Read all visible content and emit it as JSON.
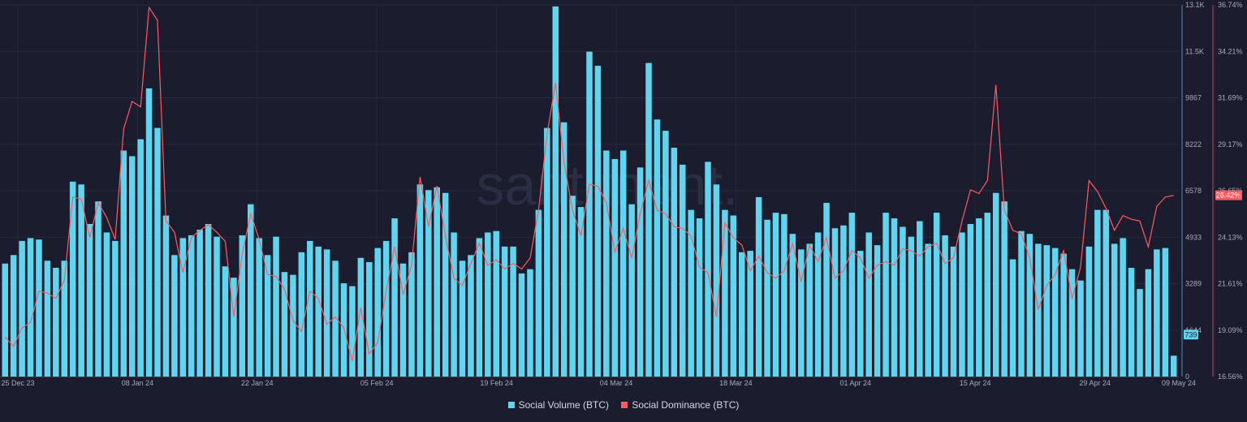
{
  "chart_data": {
    "type": "bar+line",
    "watermark": "santiment.",
    "x_tick_labels": [
      "25 Dec 23",
      "08 Jan 24",
      "22 Jan 24",
      "05 Feb 24",
      "19 Feb 24",
      "04 Mar 24",
      "18 Mar 24",
      "01 Apr 24",
      "15 Apr 24",
      "29 Apr 24",
      "09 May 24"
    ],
    "left_axis": {
      "ticks": [
        "13.1K",
        "11.5K",
        "9867",
        "8222",
        "6578",
        "4933",
        "3289",
        "1644",
        "0"
      ],
      "ylim": [
        0,
        13156
      ],
      "latest_label": "739"
    },
    "right_axis": {
      "ticks": [
        "36.74%",
        "34.21%",
        "31.69%",
        "29.17%",
        "26.65%",
        "24.13%",
        "21.61%",
        "19.09%",
        "16.56%"
      ],
      "ylim": [
        16.56,
        36.74
      ],
      "latest_label": "26.42%"
    },
    "series": [
      {
        "name": "Social Volume (BTC)",
        "kind": "bar",
        "color": "#5fd5ef",
        "values": [
          4000,
          4300,
          4800,
          4900,
          4850,
          4100,
          3850,
          4100,
          6900,
          6800,
          5400,
          6200,
          5100,
          4800,
          8000,
          7800,
          8400,
          10200,
          8800,
          5700,
          4300,
          4900,
          5000,
          5200,
          5400,
          4950,
          3900,
          3500,
          5000,
          6100,
          4900,
          4300,
          4950,
          3700,
          3600,
          4400,
          4800,
          4600,
          4500,
          4100,
          3300,
          3200,
          4200,
          4050,
          4550,
          4800,
          5600,
          4000,
          4400,
          6800,
          6600,
          6700,
          6500,
          5100,
          4100,
          4300,
          4900,
          5100,
          5150,
          4600,
          4600,
          3650,
          3800,
          5900,
          8800,
          13100,
          9000,
          6400,
          6000,
          11500,
          11000,
          8000,
          7700,
          8000,
          6100,
          7400,
          11100,
          9100,
          8700,
          8100,
          7500,
          5900,
          5600,
          7600,
          6800,
          5900,
          5700,
          4400,
          4450,
          6350,
          5550,
          5800,
          5750,
          5050,
          4500,
          4700,
          5100,
          6150,
          5250,
          5350,
          5800,
          4450,
          5100,
          4650,
          5800,
          5600,
          5300,
          4950,
          5500,
          4700,
          5800,
          5000,
          4600,
          5100,
          5400,
          5600,
          5800,
          6500,
          6200,
          4150,
          5150,
          5050,
          4700,
          4650,
          4550,
          4350,
          3800,
          3400,
          4600,
          5900,
          5900,
          4700,
          4900,
          3850,
          3100,
          3800,
          4500,
          4550,
          739
        ]
      },
      {
        "name": "Social Dominance (BTC)",
        "kind": "line",
        "color": "#ff5a5f",
        "values": [
          18.7,
          18.2,
          19.2,
          19.5,
          21.2,
          21.1,
          20.8,
          21.8,
          26.3,
          26.2,
          24.1,
          26.0,
          25.2,
          24.0,
          30.0,
          31.5,
          31.2,
          36.6,
          35.9,
          25.0,
          24.4,
          22.2,
          24.1,
          24.5,
          24.8,
          24.4,
          23.9,
          19.8,
          23.2,
          25.4,
          24.0,
          22.1,
          22.0,
          21.3,
          19.6,
          19.0,
          21.2,
          20.8,
          19.4,
          19.8,
          19.2,
          17.4,
          20.3,
          17.8,
          18.4,
          21.2,
          23.6,
          21.0,
          22.6,
          27.4,
          24.7,
          26.9,
          24.2,
          21.9,
          21.5,
          22.7,
          23.8,
          22.6,
          22.9,
          22.4,
          22.7,
          22.4,
          23.0,
          25.6,
          29.7,
          32.5,
          28.2,
          25.6,
          24.2,
          27.0,
          26.9,
          26.0,
          23.3,
          24.6,
          23.0,
          25.4,
          27.2,
          25.6,
          25.4,
          24.7,
          24.6,
          24.2,
          22.5,
          22.2,
          19.8,
          24.9,
          24.1,
          23.7,
          22.3,
          23.1,
          22.2,
          21.9,
          22.3,
          23.8,
          21.7,
          23.7,
          22.8,
          24.1,
          21.9,
          22.3,
          23.4,
          23.0,
          21.9,
          22.6,
          22.8,
          22.6,
          23.5,
          23.4,
          23.1,
          23.6,
          23.8,
          22.7,
          23.0,
          25.0,
          26.7,
          26.5,
          27.2,
          32.4,
          25.6,
          24.5,
          24.3,
          23.0,
          20.2,
          21.5,
          22.1,
          23.4,
          20.8,
          22.5,
          27.2,
          26.6,
          25.7,
          24.5,
          25.3,
          25.1,
          25.0,
          23.6,
          25.8,
          26.3,
          26.4
        ]
      }
    ],
    "legend": {
      "position": "bottom-center"
    }
  }
}
